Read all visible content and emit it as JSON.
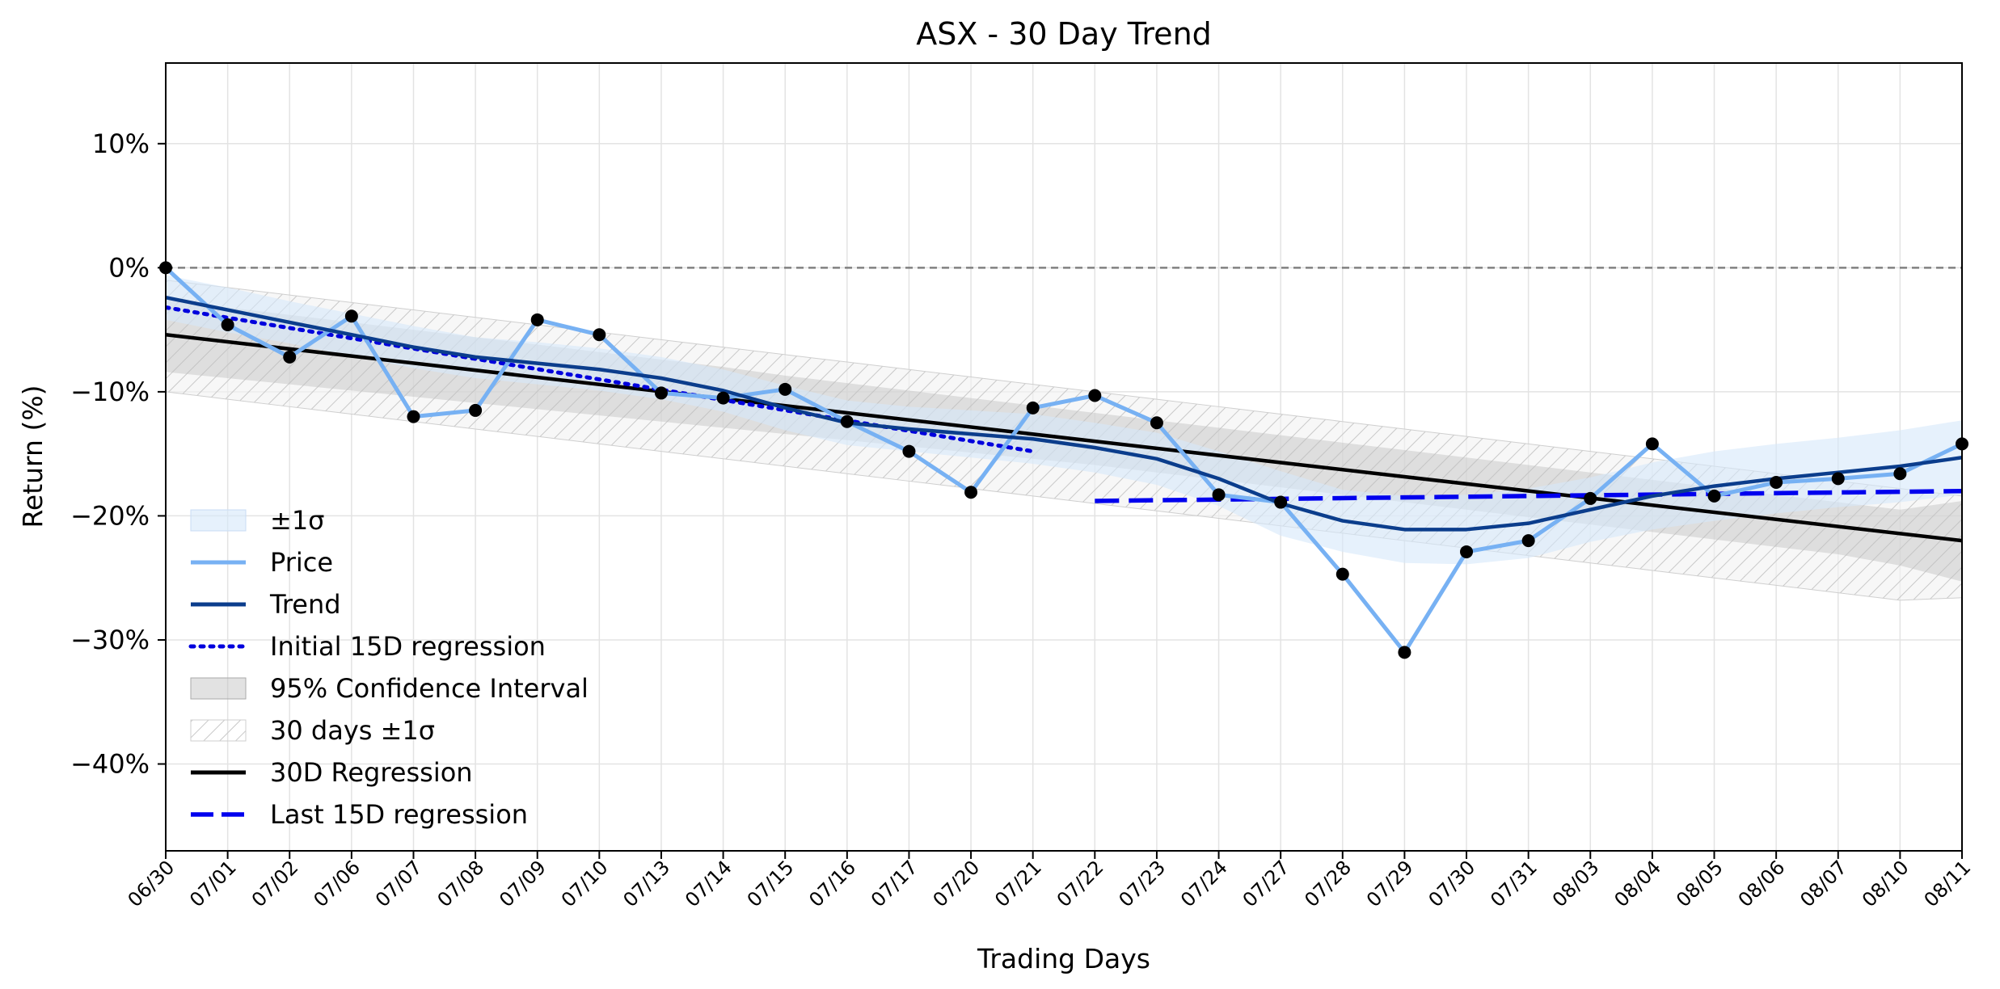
{
  "chart_data": {
    "type": "line",
    "title": "ASX - 30 Day Trend",
    "xlabel": "Trading Days",
    "ylabel": "Return (%)",
    "ylim": [
      -47,
      16.5
    ],
    "yticks": [
      10,
      0,
      -10,
      -20,
      -30,
      -40
    ],
    "ytick_labels": [
      "10%",
      "0%",
      "−10%",
      "−20%",
      "−30%",
      "−40%"
    ],
    "grid": true,
    "legend_position": "lower-left",
    "zero_line": {
      "y": 0,
      "color": "#808080",
      "style": "dashed"
    },
    "categories": [
      "06/30",
      "07/01",
      "07/02",
      "07/06",
      "07/07",
      "07/08",
      "07/09",
      "07/10",
      "07/13",
      "07/14",
      "07/15",
      "07/16",
      "07/17",
      "07/20",
      "07/21",
      "07/22",
      "07/23",
      "07/24",
      "07/27",
      "07/28",
      "07/29",
      "07/30",
      "07/31",
      "08/03",
      "08/04",
      "08/05",
      "08/06",
      "08/07",
      "08/10",
      "08/11"
    ],
    "price": [
      0.0,
      -4.6,
      -7.2,
      -3.9,
      -12.0,
      -11.5,
      -4.2,
      -5.4,
      -10.1,
      -10.5,
      -9.8,
      -12.4,
      -14.8,
      -18.1,
      -11.3,
      -10.3,
      -12.5,
      -18.3,
      -18.9,
      -24.7,
      -31.0,
      -22.9,
      -22.0,
      -18.6,
      -14.2,
      -18.4,
      -17.3,
      -17.0,
      -16.6,
      -14.2
    ],
    "trend": [
      -2.4,
      -3.4,
      -4.4,
      -5.4,
      -6.4,
      -7.2,
      -7.7,
      -8.2,
      -8.9,
      -9.9,
      -11.3,
      -12.5,
      -13.0,
      -13.4,
      -13.8,
      -14.5,
      -15.4,
      -17.0,
      -19.0,
      -20.4,
      -21.1,
      -21.1,
      -20.6,
      -19.5,
      -18.4,
      -17.6,
      -17.0,
      -16.5,
      -16.0,
      -15.3
    ],
    "sigma_band": {
      "upper": [
        -0.6,
        -1.6,
        -2.7,
        -3.7,
        -4.7,
        -5.6,
        -6.0,
        -6.5,
        -7.2,
        -8.2,
        -9.5,
        -10.7,
        -11.2,
        -11.5,
        -11.8,
        -12.5,
        -13.3,
        -14.8,
        -16.4,
        -17.9,
        -18.4,
        -18.3,
        -17.8,
        -16.9,
        -15.7,
        -14.8,
        -14.2,
        -13.7,
        -13.1,
        -12.3
      ],
      "lower": [
        -4.2,
        -5.2,
        -6.1,
        -7.1,
        -8.1,
        -8.9,
        -9.4,
        -9.9,
        -10.6,
        -11.6,
        -13.1,
        -14.3,
        -14.8,
        -15.3,
        -15.8,
        -16.5,
        -17.5,
        -19.2,
        -21.6,
        -22.9,
        -23.8,
        -23.9,
        -23.4,
        -22.1,
        -21.1,
        -20.4,
        -19.8,
        -19.3,
        -18.9,
        -18.3
      ]
    },
    "ci_band": {
      "upper": [
        -2.6,
        -3.2,
        -3.8,
        -4.4,
        -5.0,
        -5.6,
        -6.2,
        -6.8,
        -7.4,
        -8.0,
        -8.7,
        -9.3,
        -9.9,
        -10.5,
        -11.1,
        -11.7,
        -12.3,
        -12.9,
        -13.5,
        -14.1,
        -14.7,
        -15.3,
        -15.9,
        -16.5,
        -17.1,
        -17.7,
        -18.3,
        -18.9,
        -19.5,
        -18.8
      ],
      "lower": [
        -8.4,
        -8.9,
        -9.4,
        -9.9,
        -10.4,
        -10.9,
        -11.4,
        -11.9,
        -12.4,
        -12.9,
        -13.4,
        -13.9,
        -14.4,
        -14.9,
        -15.4,
        -15.9,
        -16.5,
        -17.1,
        -17.7,
        -18.3,
        -18.9,
        -19.5,
        -20.1,
        -20.7,
        -21.3,
        -21.9,
        -22.5,
        -23.1,
        -24.0,
        -25.3
      ]
    },
    "band_30d": {
      "upper": [
        -1.0,
        -1.6,
        -2.2,
        -2.8,
        -3.4,
        -4.0,
        -4.6,
        -5.2,
        -5.8,
        -6.4,
        -7.0,
        -7.6,
        -8.2,
        -8.8,
        -9.4,
        -10.0,
        -10.6,
        -11.2,
        -11.8,
        -12.4,
        -13.0,
        -13.6,
        -14.2,
        -14.8,
        -15.4,
        -16.0,
        -16.6,
        -17.2,
        -17.8,
        -18.4
      ],
      "lower": [
        -10.0,
        -10.6,
        -11.2,
        -11.8,
        -12.4,
        -13.0,
        -13.6,
        -14.2,
        -14.8,
        -15.4,
        -16.0,
        -16.6,
        -17.2,
        -17.8,
        -18.4,
        -19.0,
        -19.6,
        -20.2,
        -20.8,
        -21.4,
        -22.0,
        -22.6,
        -23.2,
        -23.8,
        -24.4,
        -25.0,
        -25.6,
        -26.2,
        -26.8,
        -26.6
      ]
    },
    "regression_30d": {
      "start": [
        0,
        -5.4
      ],
      "end": [
        29,
        -22.0
      ]
    },
    "regression_initial_15d": {
      "start": [
        0,
        -3.2
      ],
      "end": [
        14,
        -14.8
      ]
    },
    "regression_last_15d": {
      "start": [
        15,
        -18.8
      ],
      "end": [
        29,
        -18.0
      ]
    },
    "colors": {
      "price": "#77b1f3",
      "trend": "#0b3d8c",
      "sigma_band": "#d6e7fa",
      "ci_band": "#bfbfbf",
      "band_30d": "#cccccc",
      "regression_30d": "#000000",
      "initial_15d": "#0000dd",
      "last_15d": "#0000ee",
      "points": "#000000"
    },
    "legend": [
      {
        "key": "sigma",
        "label": "±1σ"
      },
      {
        "key": "price",
        "label": "Price"
      },
      {
        "key": "trend",
        "label": "Trend"
      },
      {
        "key": "initial15",
        "label": "Initial 15D regression"
      },
      {
        "key": "ci",
        "label": "95% Confidence Interval"
      },
      {
        "key": "band30",
        "label": "30 days ±1σ"
      },
      {
        "key": "reg30",
        "label": "30D Regression"
      },
      {
        "key": "last15",
        "label": "Last 15D regression"
      }
    ]
  }
}
